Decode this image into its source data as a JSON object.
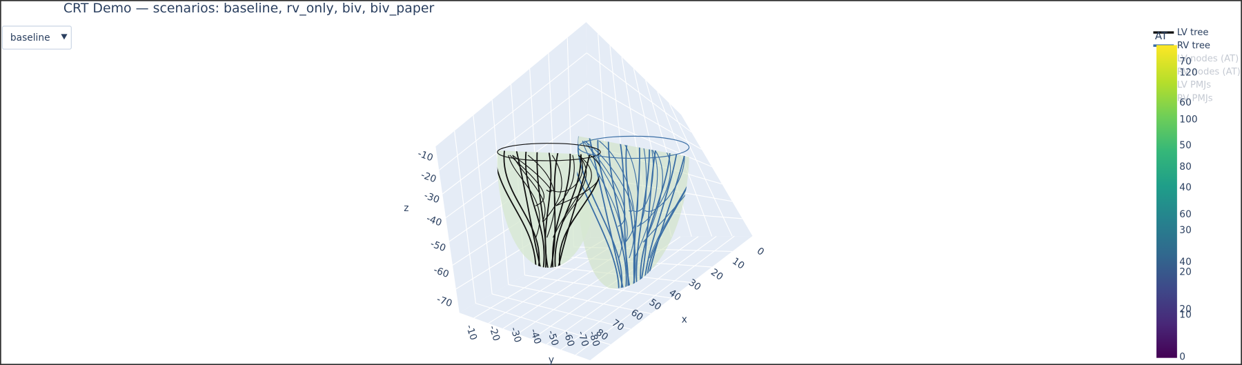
{
  "header": {
    "title": "CRT Demo — scenarios: baseline, rv_only, biv, biv_paper"
  },
  "dropdown": {
    "selected": "baseline"
  },
  "scene": {
    "x_axis": {
      "title": "x",
      "ticks": [
        80,
        70,
        60,
        50,
        40,
        30,
        20,
        10,
        0
      ]
    },
    "y_axis": {
      "title": "y",
      "ticks": [
        -10,
        -20,
        -30,
        -40,
        -50,
        -60,
        -70,
        -80
      ]
    },
    "z_axis": {
      "title": "z",
      "ticks": [
        -10,
        -20,
        -30,
        -40,
        -50,
        -60,
        -70
      ]
    }
  },
  "legend": {
    "items": [
      {
        "name": "LV tree",
        "color": "#111111",
        "visible": true
      },
      {
        "name": "RV tree",
        "color": "#3a6ea5",
        "visible": true
      },
      {
        "name": "LV nodes (AT)",
        "visible": false
      },
      {
        "name": "RV nodes (AT)",
        "visible": false
      },
      {
        "name": "LV PMJs",
        "visible": false
      },
      {
        "name": "RV PMJs",
        "visible": false
      }
    ]
  },
  "colorbars": [
    {
      "title": "AT",
      "ticks": [
        70,
        60,
        50,
        40,
        30,
        20,
        10,
        0
      ]
    },
    {
      "ticks": [
        120,
        100,
        80,
        60,
        40,
        20
      ]
    }
  ]
}
